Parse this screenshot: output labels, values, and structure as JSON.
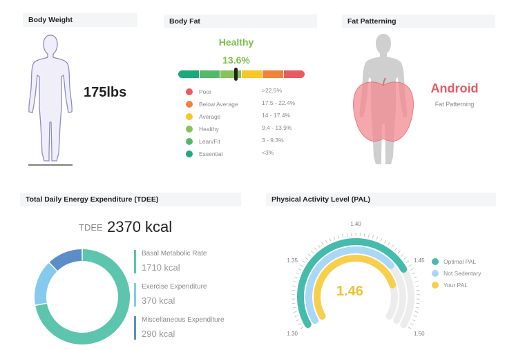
{
  "body_weight": {
    "title": "Body Weight",
    "value": "175lbs"
  },
  "body_fat": {
    "title": "Body Fat",
    "status": "Healthy",
    "percent": "13.6%",
    "indicator_value": 13.6,
    "scale_colors": [
      "#1ea97c",
      "#53b96a",
      "#86c35b",
      "#f5c827",
      "#ef833a",
      "#e95a61"
    ],
    "categories": [
      {
        "label": "Poor",
        "range": ">22.5%",
        "color": "#e95a61"
      },
      {
        "label": "Below Average",
        "range": "17.5 - 22.4%",
        "color": "#ef833a"
      },
      {
        "label": "Average",
        "range": "14 - 17.4%",
        "color": "#f5c827"
      },
      {
        "label": "Healthy",
        "range": "9.4 - 13.9%",
        "color": "#86c35b"
      },
      {
        "label": "Lean/Fit",
        "range": "3 - 9.3%",
        "color": "#53b96a"
      },
      {
        "label": "Essential",
        "range": "<3%",
        "color": "#1ea97c"
      }
    ]
  },
  "fat_patterning": {
    "title": "Fat Patterning",
    "type": "Android",
    "subtitle": "Fat Patterning",
    "icon": "apple-body-icon"
  },
  "tdee": {
    "title": "Total Daily Energy Expenditure (TDEE)",
    "label": "TDEE",
    "value": "2370 kcal",
    "items": [
      {
        "label": "Basal Metabolic Rate",
        "value": "1710 kcal",
        "kcal": 1710,
        "color": "#5dc4ad"
      },
      {
        "label": "Exercise Expenditure",
        "value": "370 kcal",
        "kcal": 370,
        "color": "#85c9ee"
      },
      {
        "label": "Miscellaneous Expenditure",
        "value": "290 kcal",
        "kcal": 290,
        "color": "#5b8ec9"
      }
    ]
  },
  "pal": {
    "title": "Physical Activity Level (PAL)",
    "value": "1.46",
    "ticks": [
      "1.30",
      "1.35",
      "1.40",
      "1.45",
      "1.50"
    ],
    "legend": [
      {
        "label": "Optimal PAL",
        "color": "#45bbac"
      },
      {
        "label": "Not Sedentary",
        "color": "#a8d8f5"
      },
      {
        "label": "Your PAL",
        "color": "#f7cf4d"
      }
    ],
    "arcs": {
      "optimal": 1.45,
      "not_sedentary": 1.44,
      "your": 1.46
    }
  }
}
